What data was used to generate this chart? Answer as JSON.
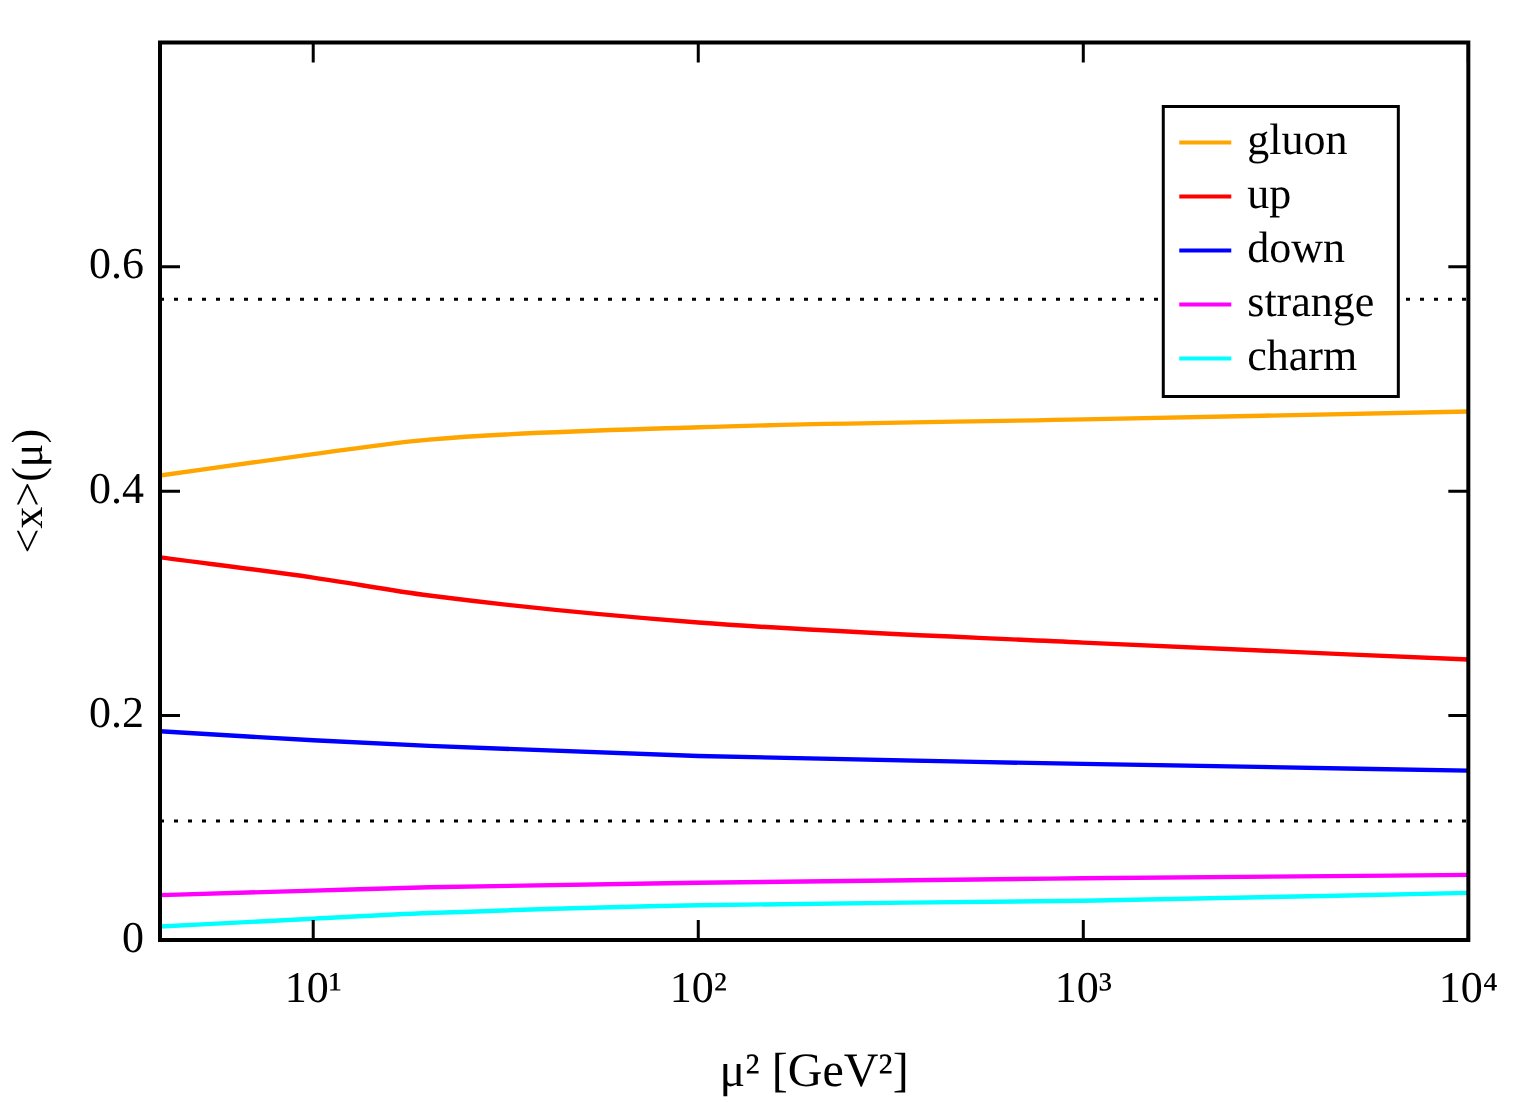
{
  "chart_data": {
    "type": "line",
    "xlabel": "μ² [GeV²]",
    "ylabel": "<x>(μ)",
    "x": [
      4,
      10,
      20,
      100,
      1000,
      10000
    ],
    "log": "x",
    "xlim": [
      4,
      10000
    ],
    "xticks": [
      {
        "value": 10,
        "label": "10¹"
      },
      {
        "value": 100,
        "label": "10²"
      },
      {
        "value": 1000,
        "label": "10³"
      },
      {
        "value": 10000,
        "label": "10⁴"
      }
    ],
    "ylim": [
      0,
      0.8
    ],
    "yticks": [
      0,
      0.2,
      0.4,
      0.6
    ],
    "grid": false,
    "legend": "top right",
    "marker": "none",
    "line_style": "solid",
    "ref_lines": [
      {
        "axis": "y",
        "value": 0.571,
        "line_style": "dotted",
        "color": "#000000"
      },
      {
        "axis": "y",
        "value": 0.106,
        "line_style": "dotted",
        "color": "#000000"
      }
    ],
    "series": [
      {
        "name": "gluon",
        "color": "#ffa500",
        "values": [
          0.414,
          0.433,
          0.446,
          0.457,
          0.464,
          0.471
        ]
      },
      {
        "name": "up",
        "color": "#ff0000",
        "values": [
          0.341,
          0.323,
          0.307,
          0.283,
          0.265,
          0.25
        ]
      },
      {
        "name": "down",
        "color": "#0000ff",
        "values": [
          0.186,
          0.178,
          0.173,
          0.164,
          0.157,
          0.151
        ]
      },
      {
        "name": "strange",
        "color": "#ff00ff",
        "values": [
          0.04,
          0.044,
          0.047,
          0.051,
          0.055,
          0.058
        ]
      },
      {
        "name": "charm",
        "color": "#00ffff",
        "values": [
          0.012,
          0.019,
          0.024,
          0.031,
          0.035,
          0.042
        ]
      }
    ]
  }
}
